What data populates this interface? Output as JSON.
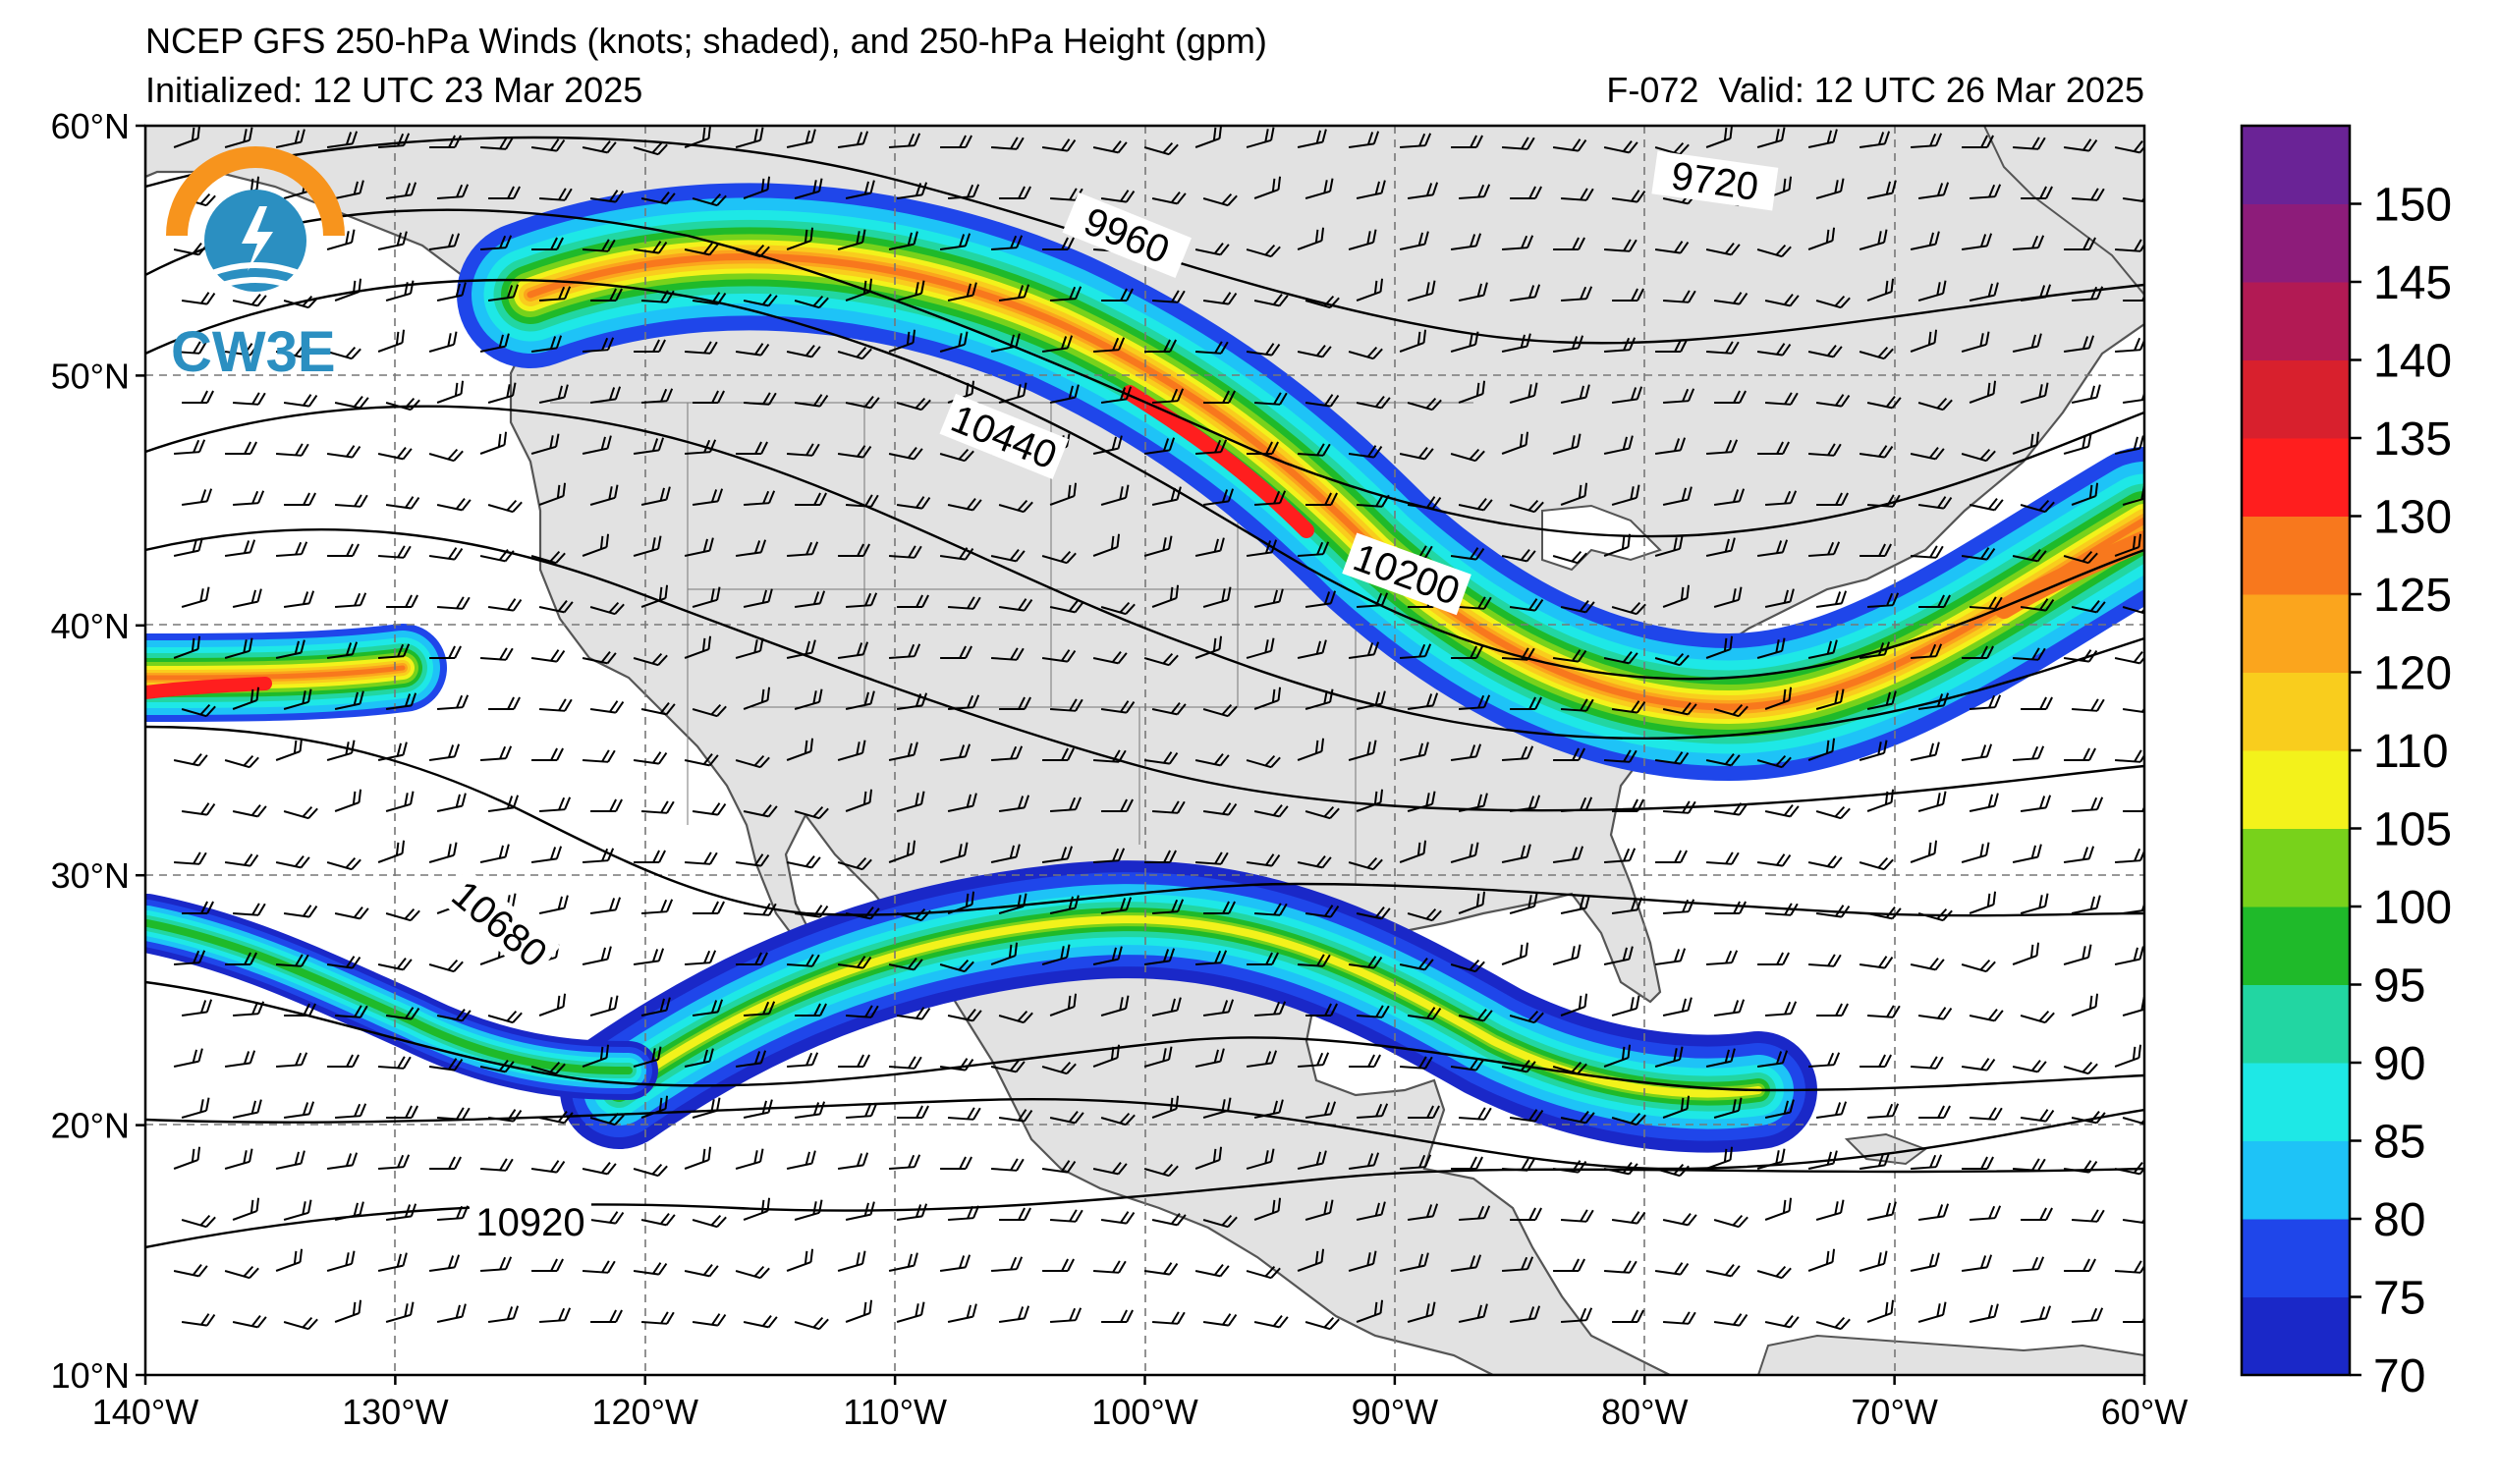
{
  "header": {
    "title": "NCEP GFS 250-hPa Winds (knots; shaded), and 250-hPa Height (gpm)",
    "initialized": "Initialized: 12 UTC 23 Mar 2025",
    "forecast_hour": "F-072",
    "valid": "Valid: 12 UTC 26 Mar 2025"
  },
  "logo": {
    "text": "CW3E",
    "colors": [
      "#f7941d",
      "#2b8fc1"
    ]
  },
  "map": {
    "projection": "equirectangular",
    "lon_range": [
      -140,
      -60
    ],
    "lat_range": [
      10,
      60
    ],
    "lat_labels": [
      "60°N",
      "50°N",
      "40°N",
      "30°N",
      "20°N",
      "10°N"
    ],
    "lon_labels": [
      "140°W",
      "130°W",
      "120°W",
      "110°W",
      "100°W",
      "90°W",
      "80°W",
      "70°W",
      "60°W"
    ],
    "gridlines": true,
    "land_color": "#e2e2e2",
    "ocean_color": "#ffffff"
  },
  "height_contours": {
    "labels": [
      "9720",
      "9960",
      "10200",
      "10440",
      "10680",
      "10920"
    ]
  },
  "colorbar": {
    "orientation": "vertical",
    "placement": "right",
    "ticks": [
      "70",
      "75",
      "80",
      "85",
      "90",
      "95",
      "100",
      "105",
      "110",
      "120",
      "125",
      "130",
      "135",
      "140",
      "145",
      "150"
    ],
    "bins": [
      {
        "from": 70,
        "to": 75,
        "color": "#1a28c8"
      },
      {
        "from": 75,
        "to": 80,
        "color": "#1f46ea"
      },
      {
        "from": 80,
        "to": 85,
        "color": "#1ec3f7"
      },
      {
        "from": 85,
        "to": 90,
        "color": "#1ee8e6"
      },
      {
        "from": 90,
        "to": 95,
        "color": "#22d6a2"
      },
      {
        "from": 95,
        "to": 100,
        "color": "#1fba2a"
      },
      {
        "from": 100,
        "to": 105,
        "color": "#78d21b"
      },
      {
        "from": 105,
        "to": 110,
        "color": "#f3f21b"
      },
      {
        "from": 110,
        "to": 120,
        "color": "#f9cd1d"
      },
      {
        "from": 120,
        "to": 125,
        "color": "#fba51d"
      },
      {
        "from": 125,
        "to": 130,
        "color": "#f8781d"
      },
      {
        "from": 130,
        "to": 135,
        "color": "#ff1e1e"
      },
      {
        "from": 135,
        "to": 140,
        "color": "#d8202d"
      },
      {
        "from": 140,
        "to": 145,
        "color": "#b21a54"
      },
      {
        "from": 145,
        "to": 150,
        "color": "#8d1c7a"
      },
      {
        "from": 150,
        "to": 155,
        "color": "#6a2396"
      }
    ]
  }
}
